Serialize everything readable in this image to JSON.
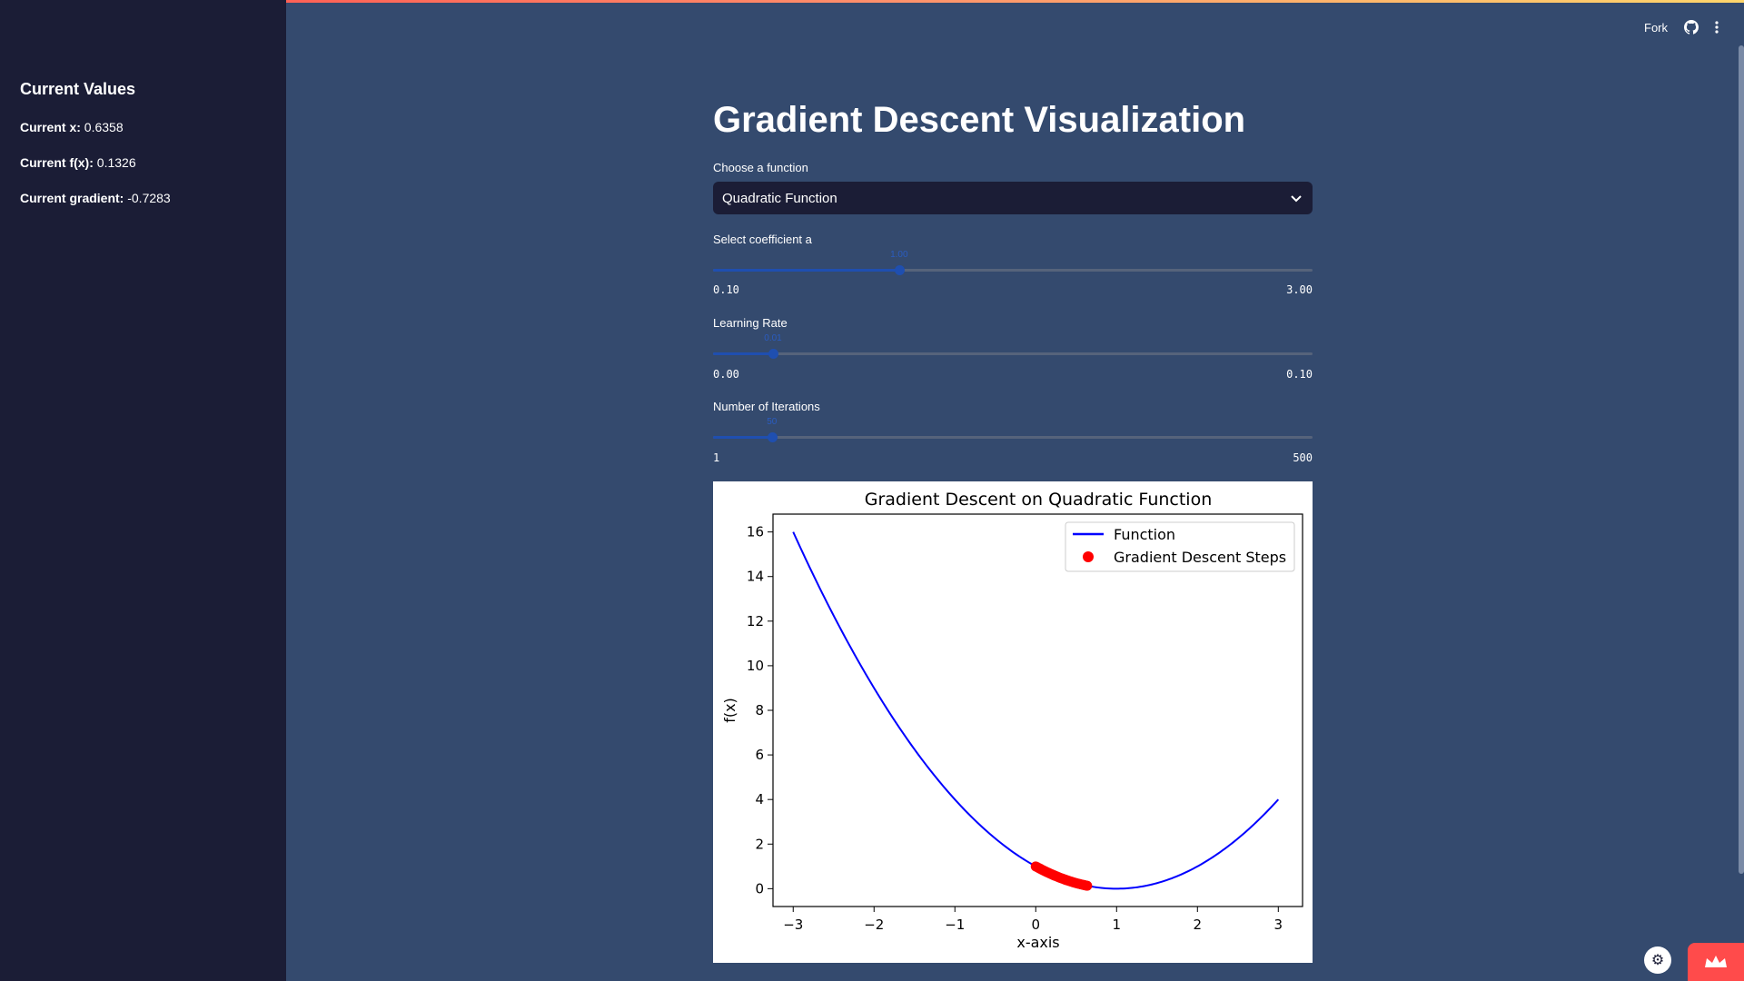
{
  "sidebar": {
    "title": "Current Values",
    "rows": [
      {
        "label": "Current x:",
        "value": "0.6358"
      },
      {
        "label": "Current f(x):",
        "value": "0.1326"
      },
      {
        "label": "Current gradient:",
        "value": "-0.7283"
      }
    ]
  },
  "header": {
    "fork_label": "Fork",
    "github_icon": "github-icon",
    "menu_icon": "kebab-menu-icon"
  },
  "main": {
    "title": "Gradient Descent Visualization",
    "function_select": {
      "label": "Choose a function",
      "value": "Quadratic Function"
    },
    "sliders": [
      {
        "label": "Select coefficient a",
        "min_label": "0.10",
        "max_label": "3.00",
        "value": 1.0,
        "value_label": "1.00",
        "min": 0.1,
        "max": 3.0
      },
      {
        "label": "Learning Rate",
        "min_label": "0.00",
        "max_label": "0.10",
        "value": 0.01,
        "value_label": "0.01",
        "min": 0.0,
        "max": 0.1
      },
      {
        "label": "Number of Iterations",
        "min_label": "1",
        "max_label": "500",
        "value": 50,
        "value_label": "50",
        "min": 1,
        "max": 500
      }
    ]
  },
  "chart_data": {
    "type": "line",
    "title": "Gradient Descent on Quadratic Function",
    "xlabel": "x-axis",
    "ylabel": "f(x)",
    "xlim": [
      -3.25,
      3.3
    ],
    "ylim": [
      -0.8,
      16.8
    ],
    "xticks": [
      -3,
      -2,
      -1,
      0,
      1,
      2,
      3
    ],
    "yticks": [
      0,
      2,
      4,
      6,
      8,
      10,
      12,
      14,
      16
    ],
    "legend_position": "top-right",
    "series": [
      {
        "name": "Function",
        "kind": "line",
        "color": "#0000ff",
        "formula": "(x-1)^2",
        "x_range": [
          -3,
          3
        ]
      },
      {
        "name": "Gradient Descent Steps",
        "kind": "scatter",
        "color": "#ff0000",
        "x": [
          0.0,
          0.02,
          0.04,
          0.06,
          0.08,
          0.1,
          0.12,
          0.14,
          0.16,
          0.18,
          0.2,
          0.22,
          0.24,
          0.26,
          0.28,
          0.3,
          0.32,
          0.34,
          0.36,
          0.38,
          0.4,
          0.42,
          0.44,
          0.46,
          0.48,
          0.5,
          0.52,
          0.54,
          0.56,
          0.58,
          0.6,
          0.62,
          0.6358
        ]
      }
    ]
  },
  "colors": {
    "page_bg": "#344a6e",
    "sidebar_bg": "#1b1d36",
    "accent": "#1f4fb0",
    "brand_red": "#ff4b4b"
  }
}
